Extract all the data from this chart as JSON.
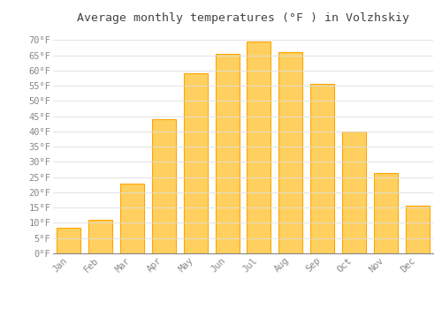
{
  "title": "Average monthly temperatures (°F ) in Volzhskiy",
  "months": [
    "Jan",
    "Feb",
    "Mar",
    "Apr",
    "May",
    "Jun",
    "Jul",
    "Aug",
    "Sep",
    "Oct",
    "Nov",
    "Dec"
  ],
  "values": [
    8.5,
    11,
    23,
    44,
    59,
    65.5,
    69.5,
    66,
    55.5,
    40,
    26.5,
    15.5
  ],
  "bar_color_main": "#FFA500",
  "bar_color_light": "#FFD060",
  "background_color": "#FFFFFF",
  "grid_color": "#DDDDDD",
  "ylim": [
    0,
    73
  ],
  "yticks": [
    0,
    5,
    10,
    15,
    20,
    25,
    30,
    35,
    40,
    45,
    50,
    55,
    60,
    65,
    70
  ],
  "title_fontsize": 9.5,
  "tick_fontsize": 7.5,
  "tick_label_color": "#888888",
  "title_color": "#444444",
  "font_family": "monospace",
  "bar_width": 0.75
}
